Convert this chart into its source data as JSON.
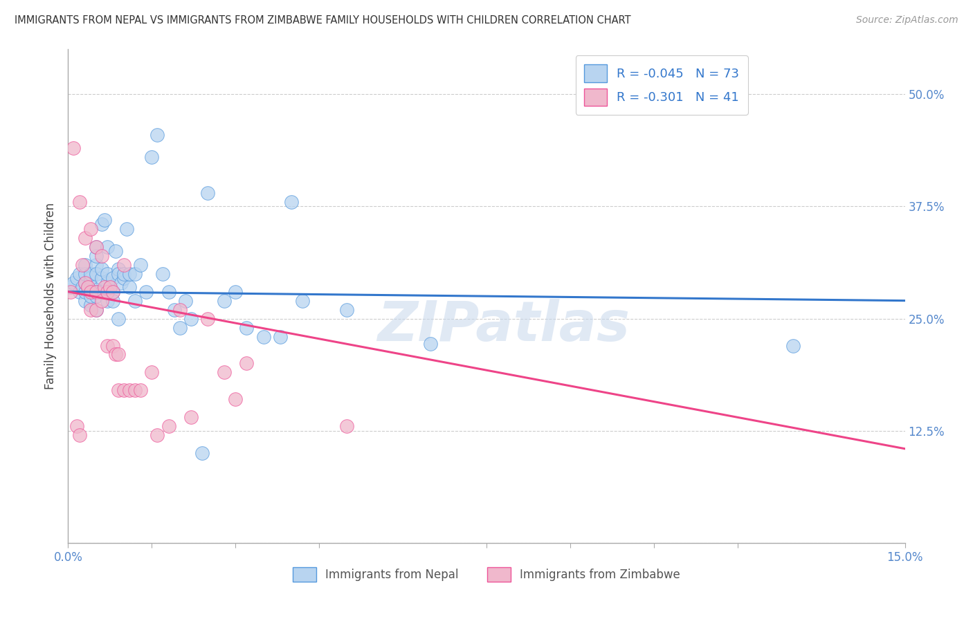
{
  "title": "IMMIGRANTS FROM NEPAL VS IMMIGRANTS FROM ZIMBABWE FAMILY HOUSEHOLDS WITH CHILDREN CORRELATION CHART",
  "source": "Source: ZipAtlas.com",
  "ylabel": "Family Households with Children",
  "xlim": [
    0.0,
    0.15
  ],
  "ylim": [
    0.0,
    0.55
  ],
  "xtick_vals": [
    0.0,
    0.015,
    0.03,
    0.045,
    0.075,
    0.09,
    0.105,
    0.12,
    0.15
  ],
  "xtick_edge_labels": {
    "0": "0.0%",
    "8": "15.0%"
  },
  "yticks": [
    0.0,
    0.125,
    0.25,
    0.375,
    0.5
  ],
  "ytick_labels": [
    "",
    "12.5%",
    "25.0%",
    "37.5%",
    "50.0%"
  ],
  "nepal_R": -0.045,
  "nepal_N": 73,
  "zimbabwe_R": -0.301,
  "zimbabwe_N": 41,
  "nepal_color": "#b8d4f0",
  "zimbabwe_color": "#f0b8cc",
  "nepal_edge_color": "#5599dd",
  "zimbabwe_edge_color": "#ee5599",
  "nepal_line_color": "#3377cc",
  "zimbabwe_line_color": "#ee4488",
  "nepal_x": [
    0.0005,
    0.001,
    0.0015,
    0.002,
    0.002,
    0.0025,
    0.003,
    0.003,
    0.003,
    0.003,
    0.003,
    0.0035,
    0.004,
    0.004,
    0.004,
    0.004,
    0.004,
    0.0045,
    0.005,
    0.005,
    0.005,
    0.005,
    0.005,
    0.005,
    0.0055,
    0.006,
    0.006,
    0.006,
    0.006,
    0.0065,
    0.007,
    0.007,
    0.007,
    0.007,
    0.007,
    0.0075,
    0.008,
    0.008,
    0.008,
    0.0085,
    0.009,
    0.009,
    0.009,
    0.0095,
    0.01,
    0.01,
    0.0105,
    0.011,
    0.011,
    0.012,
    0.012,
    0.013,
    0.014,
    0.015,
    0.016,
    0.017,
    0.018,
    0.019,
    0.02,
    0.021,
    0.022,
    0.024,
    0.025,
    0.028,
    0.03,
    0.032,
    0.035,
    0.038,
    0.04,
    0.042,
    0.05,
    0.065,
    0.13
  ],
  "nepal_y": [
    0.285,
    0.29,
    0.295,
    0.28,
    0.3,
    0.285,
    0.27,
    0.28,
    0.29,
    0.3,
    0.31,
    0.285,
    0.265,
    0.275,
    0.285,
    0.295,
    0.3,
    0.28,
    0.31,
    0.32,
    0.33,
    0.3,
    0.275,
    0.26,
    0.28,
    0.28,
    0.295,
    0.305,
    0.355,
    0.36,
    0.29,
    0.3,
    0.28,
    0.27,
    0.33,
    0.285,
    0.295,
    0.28,
    0.27,
    0.325,
    0.305,
    0.3,
    0.25,
    0.29,
    0.295,
    0.3,
    0.35,
    0.285,
    0.3,
    0.3,
    0.27,
    0.31,
    0.28,
    0.43,
    0.455,
    0.3,
    0.28,
    0.26,
    0.24,
    0.27,
    0.25,
    0.1,
    0.39,
    0.27,
    0.28,
    0.24,
    0.23,
    0.23,
    0.38,
    0.27,
    0.26,
    0.222,
    0.22
  ],
  "zimbabwe_x": [
    0.0005,
    0.001,
    0.0015,
    0.002,
    0.002,
    0.0025,
    0.003,
    0.003,
    0.0035,
    0.004,
    0.004,
    0.004,
    0.005,
    0.005,
    0.005,
    0.006,
    0.006,
    0.0065,
    0.007,
    0.007,
    0.0075,
    0.008,
    0.008,
    0.0085,
    0.009,
    0.009,
    0.01,
    0.01,
    0.011,
    0.012,
    0.013,
    0.015,
    0.016,
    0.018,
    0.02,
    0.022,
    0.025,
    0.028,
    0.03,
    0.032,
    0.05
  ],
  "zimbabwe_y": [
    0.28,
    0.44,
    0.13,
    0.12,
    0.38,
    0.31,
    0.34,
    0.29,
    0.285,
    0.28,
    0.26,
    0.35,
    0.28,
    0.26,
    0.33,
    0.27,
    0.32,
    0.285,
    0.22,
    0.28,
    0.285,
    0.22,
    0.28,
    0.21,
    0.21,
    0.17,
    0.17,
    0.31,
    0.17,
    0.17,
    0.17,
    0.19,
    0.12,
    0.13,
    0.26,
    0.14,
    0.25,
    0.19,
    0.16,
    0.2,
    0.13
  ],
  "watermark": "ZIPatlas",
  "legend_nepal_label": "Immigrants from Nepal",
  "legend_zimbabwe_label": "Immigrants from Zimbabwe",
  "background_color": "#ffffff",
  "grid_color": "#cccccc"
}
